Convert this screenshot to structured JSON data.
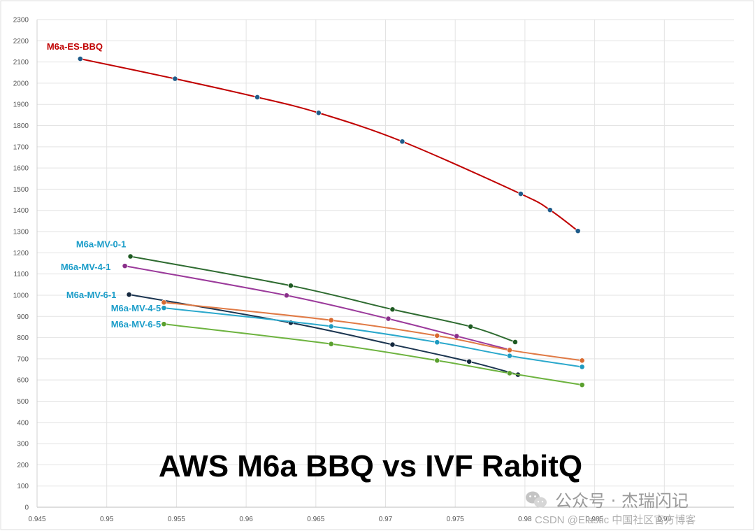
{
  "chart_data": {
    "type": "line",
    "title": "AWS M6a BBQ vs IVF RabitQ",
    "xlabel": "",
    "ylabel": "",
    "xlim": [
      0.945,
      0.995
    ],
    "ylim": [
      0,
      2300
    ],
    "x_ticks": [
      "0.945",
      "0.95",
      "0.955",
      "0.96",
      "0.965",
      "0.97",
      "0.975",
      "0.98",
      "0.985",
      "0.99"
    ],
    "y_ticks": [
      "0",
      "100",
      "200",
      "300",
      "400",
      "500",
      "600",
      "700",
      "800",
      "900",
      "1000",
      "1100",
      "1200",
      "1300",
      "1400",
      "1500",
      "1600",
      "1700",
      "1800",
      "1900",
      "2000",
      "2100",
      "2200",
      "2300"
    ],
    "grid": true,
    "series": [
      {
        "name": "M6a-ES-BBQ",
        "color": "#c00000",
        "marker_color": "#1f5c8a",
        "label_color": "#c00000",
        "points": [
          [
            0.9481,
            2115
          ],
          [
            0.9549,
            2021
          ],
          [
            0.9608,
            1934
          ],
          [
            0.9652,
            1860
          ],
          [
            0.9712,
            1725
          ],
          [
            0.9797,
            1478
          ],
          [
            0.9818,
            1402
          ],
          [
            0.9838,
            1303
          ]
        ]
      },
      {
        "name": "M6a-MV-0-1",
        "color": "#2e6b30",
        "marker_color": "#1e5a22",
        "label_color": "#1b9dc9",
        "points": [
          [
            0.9517,
            1183
          ],
          [
            0.9632,
            1045
          ],
          [
            0.9705,
            933
          ],
          [
            0.9761,
            852
          ],
          [
            0.9793,
            779
          ]
        ]
      },
      {
        "name": "M6a-MV-4-1",
        "color": "#9b3a9b",
        "marker_color": "#8a2f8a",
        "label_color": "#1b9dc9",
        "points": [
          [
            0.9513,
            1138
          ],
          [
            0.9629,
            999
          ],
          [
            0.9702,
            889
          ],
          [
            0.9751,
            807
          ],
          [
            0.9789,
            743
          ]
        ]
      },
      {
        "name": "M6a-MV-6-1",
        "color": "#1b3550",
        "marker_color": "#14283e",
        "label_color": "#1b9dc9",
        "points": [
          [
            0.9516,
            1003
          ],
          [
            0.9632,
            870
          ],
          [
            0.9705,
            767
          ],
          [
            0.976,
            687
          ],
          [
            0.9795,
            625
          ]
        ]
      },
      {
        "name": "M6a-MV-4-5",
        "color": "#2aa8cc",
        "marker_color": "#1e9ac0",
        "label_color": "#1b9dc9",
        "points": [
          [
            0.9541,
            940
          ],
          [
            0.9661,
            853
          ],
          [
            0.9737,
            778
          ],
          [
            0.9789,
            714
          ],
          [
            0.9841,
            662
          ]
        ]
      },
      {
        "name": "M6a-MV-4-5 (orange)",
        "color": "#e07a45",
        "marker_color": "#d86a30",
        "label_color": "#e07a45",
        "points": [
          [
            0.9541,
            966
          ],
          [
            0.9661,
            882
          ],
          [
            0.9737,
            809
          ],
          [
            0.9789,
            741
          ],
          [
            0.9841,
            692
          ]
        ]
      },
      {
        "name": "M6a-MV-6-5",
        "color": "#6db33f",
        "marker_color": "#5aa02e",
        "label_color": "#1b9dc9",
        "points": [
          [
            0.9541,
            864
          ],
          [
            0.9661,
            770
          ],
          [
            0.9737,
            692
          ],
          [
            0.9789,
            632
          ],
          [
            0.9841,
            577
          ]
        ]
      }
    ],
    "labels": [
      {
        "text": "M6a-ES-BBQ",
        "color": "#c00000"
      },
      {
        "text": "M6a-MV-0-1",
        "color": "#1b9dc9"
      },
      {
        "text": "M6a-MV-4-1",
        "color": "#1b9dc9"
      },
      {
        "text": "M6a-MV-6-1",
        "color": "#1b9dc9"
      },
      {
        "text": "M6a-MV-4-5",
        "color": "#1b9dc9"
      },
      {
        "text": "M6a-MV-6-5",
        "color": "#1b9dc9"
      }
    ]
  },
  "watermark": {
    "line1": "公众号 · 杰瑞闪记",
    "line2": "CSDN @Elastic 中国社区官方博客",
    "icon": "wechat-icon"
  }
}
